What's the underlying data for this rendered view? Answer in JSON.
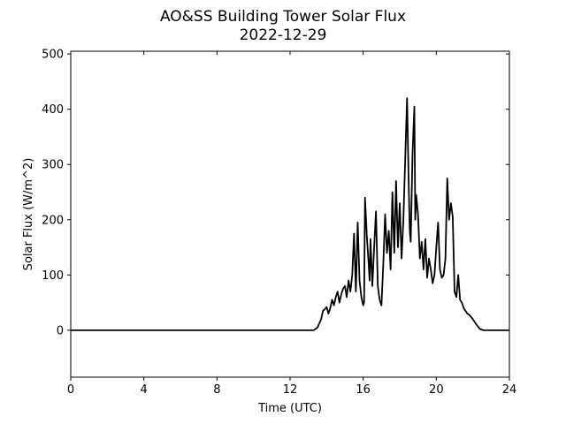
{
  "chart_data": {
    "type": "line",
    "title": "AO&SS Building Tower Solar Flux",
    "subtitle": "2022-12-29",
    "xlabel": "Time (UTC)",
    "ylabel": "Solar Flux (W/m^2)",
    "xlim": [
      0,
      24
    ],
    "ylim": [
      -85,
      505
    ],
    "xticks": [
      0,
      4,
      8,
      12,
      16,
      20,
      24
    ],
    "yticks": [
      0,
      100,
      200,
      300,
      400,
      500
    ],
    "grid": false,
    "series": [
      {
        "color": "#000000",
        "x": [
          0,
          13.3,
          13.5,
          13.7,
          13.8,
          13.9,
          14.0,
          14.1,
          14.2,
          14.3,
          14.4,
          14.5,
          14.6,
          14.7,
          14.8,
          14.9,
          15.0,
          15.1,
          15.2,
          15.3,
          15.4,
          15.5,
          15.6,
          15.7,
          15.8,
          15.9,
          16.0,
          16.05,
          16.1,
          16.2,
          16.3,
          16.35,
          16.4,
          16.5,
          16.6,
          16.7,
          16.8,
          16.9,
          17.0,
          17.1,
          17.2,
          17.3,
          17.4,
          17.5,
          17.6,
          17.7,
          17.8,
          17.9,
          18.0,
          18.1,
          18.2,
          18.3,
          18.4,
          18.5,
          18.55,
          18.6,
          18.7,
          18.8,
          18.85,
          18.9,
          19.0,
          19.1,
          19.2,
          19.3,
          19.4,
          19.5,
          19.6,
          19.7,
          19.8,
          19.9,
          20.0,
          20.1,
          20.2,
          20.3,
          20.4,
          20.5,
          20.6,
          20.7,
          20.8,
          20.9,
          21.0,
          21.1,
          21.2,
          21.3,
          21.4,
          21.5,
          21.6,
          21.7,
          21.8,
          22.0,
          22.2,
          22.4,
          22.6,
          24
        ],
        "y": [
          0,
          0,
          5,
          20,
          35,
          38,
          42,
          30,
          40,
          55,
          45,
          60,
          70,
          50,
          65,
          75,
          80,
          60,
          90,
          70,
          100,
          175,
          70,
          195,
          90,
          60,
          45,
          50,
          240,
          170,
          120,
          90,
          165,
          80,
          150,
          215,
          80,
          55,
          45,
          120,
          210,
          140,
          180,
          110,
          250,
          140,
          270,
          150,
          230,
          130,
          200,
          310,
          420,
          250,
          180,
          160,
          320,
          405,
          200,
          245,
          210,
          130,
          160,
          110,
          165,
          95,
          130,
          110,
          85,
          100,
          150,
          195,
          110,
          95,
          100,
          130,
          275,
          200,
          230,
          205,
          70,
          60,
          100,
          55,
          50,
          40,
          35,
          30,
          28,
          20,
          10,
          2,
          0,
          0
        ]
      }
    ]
  }
}
